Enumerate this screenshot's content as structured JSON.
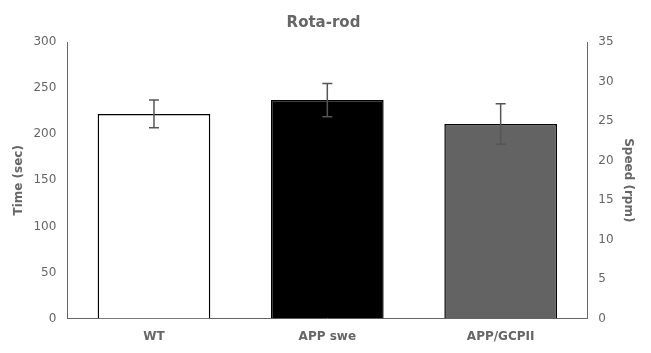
{
  "chart_data": {
    "type": "bar",
    "title": "Rota-rod",
    "categories": [
      "WT",
      "APP swe",
      "APP/GCPII"
    ],
    "values": [
      222,
      237,
      211
    ],
    "errors": [
      15,
      18,
      22
    ],
    "colors": [
      "#ffffff",
      "#000000",
      "#636363"
    ],
    "ylabel": "Time (sec)",
    "y2label": "Speed (rpm)",
    "ylim": [
      0,
      300
    ],
    "yticks": [
      0,
      50,
      100,
      150,
      200,
      250,
      300
    ],
    "y2lim": [
      0,
      35
    ],
    "y2ticks": [
      0,
      5,
      10,
      15,
      20,
      25,
      30,
      35
    ],
    "grid": false
  }
}
